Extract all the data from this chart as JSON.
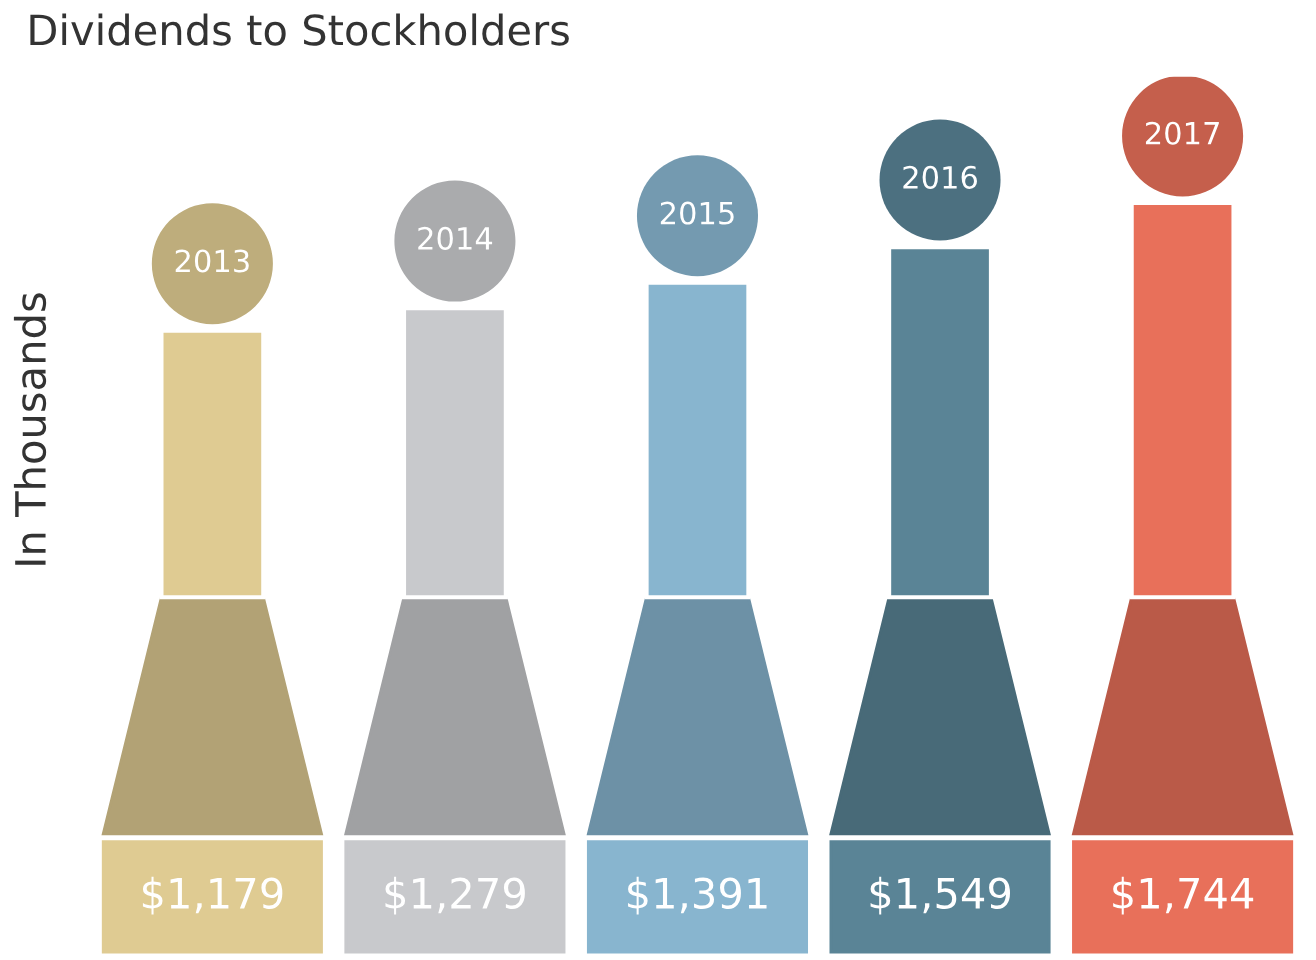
{
  "chart_data": {
    "type": "bar",
    "title": "Dividends to Stockholders",
    "ylabel": "In Thousands",
    "categories": [
      "2013",
      "2014",
      "2015",
      "2016",
      "2017"
    ],
    "values": [
      1179,
      1279,
      1391,
      1549,
      1744
    ],
    "colors": [
      "#dfcb92",
      "#c8c9cc",
      "#88b5cf",
      "#5a8496",
      "#e8705a"
    ],
    "value_labels": [
      "$1,179",
      "$1,279",
      "$1,391",
      "$1,549",
      "$1,744"
    ]
  }
}
